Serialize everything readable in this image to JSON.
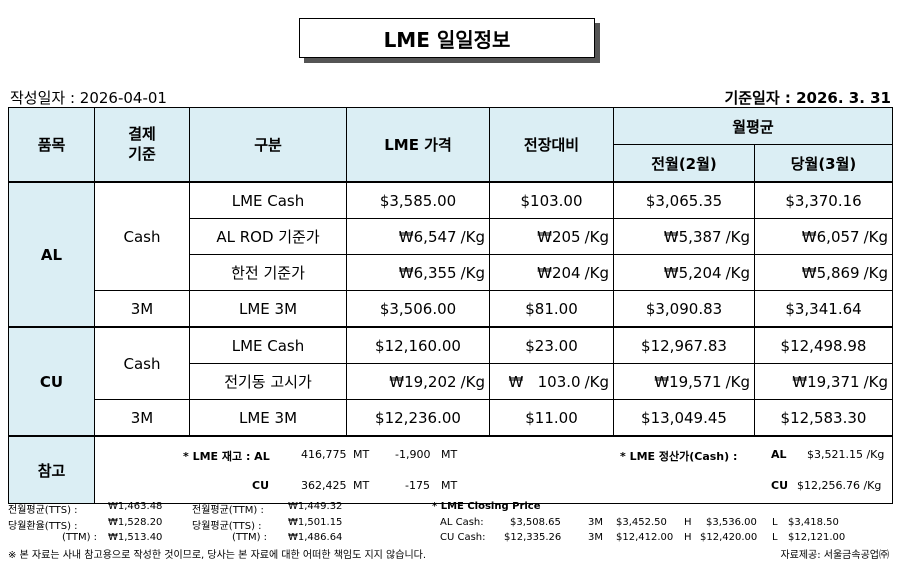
{
  "title": "LME 일일정보",
  "created": "작성일자 :  2026-04-01",
  "base_date": "기준일자 : 2026.   3.    31",
  "header": {
    "item": "품목",
    "settle": "결제\n기준",
    "div": "구분",
    "price": "LME 가격",
    "change": "전장대비",
    "monthly": "월평균",
    "prev": "전월(2월)",
    "cur": "당월(3월)"
  },
  "al": {
    "name": "AL",
    "cash": "Cash",
    "m3": "3M",
    "rows": [
      {
        "div": "LME Cash",
        "price": "$3,585.00",
        "chg": "$103.00",
        "prev": "$3,065.35",
        "cur": "$3,370.16"
      },
      {
        "div": "AL ROD 기준가",
        "price": "₩6,547",
        "chg": "₩205",
        "prev": "₩5,387",
        "cur": "₩6,057"
      },
      {
        "div": "한전 기준가",
        "price": "₩6,355",
        "chg": "₩204",
        "prev": "₩5,204",
        "cur": "₩5,869"
      },
      {
        "div": "LME  3M",
        "price": "$3,506.00",
        "chg": "$81.00",
        "prev": "$3,090.83",
        "cur": "$3,341.64"
      }
    ]
  },
  "cu": {
    "name": "CU",
    "cash": "Cash",
    "m3": "3M",
    "rows": [
      {
        "div": "LME Cash",
        "price": "$12,160.00",
        "chg": "$23.00",
        "prev": "$12,967.83",
        "cur": "$12,498.98"
      },
      {
        "div": "전기동 고시가",
        "price": "₩19,202",
        "chg": "₩   103.0",
        "prev": "₩19,571",
        "cur": "₩19,371"
      },
      {
        "div": "LME 3M",
        "price": "$12,236.00",
        "chg": "$11.00",
        "prev": "$13,049.45",
        "cur": "$12,583.30"
      }
    ]
  },
  "unit": "/Kg",
  "ref": {
    "label": "참고",
    "stock_label": "* LME 재고 : AL",
    "al_stock": "416,775",
    "al_unit": "MT",
    "al_chg": "-1,900",
    "al_chg_unit": "MT",
    "cu_label": "CU",
    "cu_stock": "362,425",
    "cu_unit": "MT",
    "cu_chg": "-175",
    "cu_chg_unit": "MT",
    "settle_label": "* LME 정산가(Cash) :",
    "al": "AL",
    "al_val": "$3,521.15 /Kg",
    "cu": "CU",
    "cu_val": "$12,256.76 /Kg"
  },
  "footer": {
    "r1a": "전월평균(TTS) :",
    "r1b": "₩1,463.48",
    "r1c": "전월평균(TTM) :",
    "r1d": "₩1,449.32",
    "r2a": "당월환율(TTS) :",
    "r2b": "₩1,528.20",
    "r2c": "당월평균(TTS) :",
    "r2d": "₩1,501.15",
    "r3a": "(TTM) :",
    "r3b": "₩1,513.40",
    "r3c": "(TTM) :",
    "r3d": "₩1,486.64",
    "closing": "* LME Closing Price",
    "al_lbl": "AL  Cash:",
    "al_cash": "$3,508.65",
    "al_3m_lbl": "3M",
    "al_3m": "$3,452.50",
    "al_h_lbl": "H",
    "al_h": "$3,536.00",
    "al_l_lbl": "L",
    "al_l": "$3,418.50",
    "cu_lbl": "CU  Cash:",
    "cu_cash": "$12,335.26",
    "cu_3m_lbl": "3M",
    "cu_3m": "$12,412.00",
    "cu_h_lbl": "H",
    "cu_h": "$12,420.00",
    "cu_l_lbl": "L",
    "cu_l": "$12,121.00",
    "disclaimer": "※ 본 자료는 사내 참고용으로 작성한 것이므로, 당사는 본 자료에 대한 어떠한 책임도 지지 않습니다.",
    "source": "자료제공: 서울금속공업㈜"
  }
}
